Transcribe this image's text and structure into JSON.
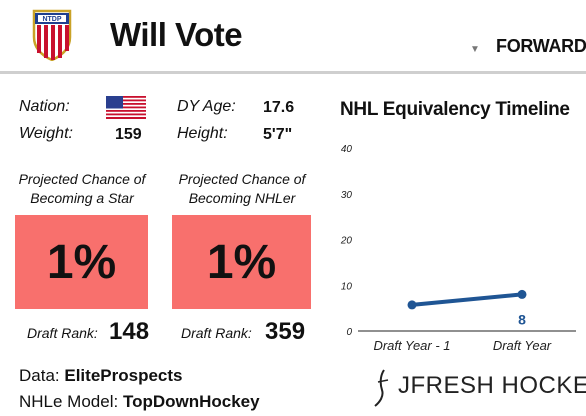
{
  "header": {
    "player_name": "Will Vote",
    "position": "FORWARD",
    "logo_text": "NTDP"
  },
  "bio": {
    "nation_label": "Nation:",
    "weight_label": "Weight:",
    "weight_value": "159",
    "dy_age_label": "DY Age:",
    "dy_age_value": "17.6",
    "height_label": "Height:",
    "height_value": "5'7\""
  },
  "projections": [
    {
      "label_line1": "Projected Chance of",
      "label_line2": "Becoming a Star",
      "value": "1%",
      "rank_label": "Draft Rank:",
      "rank_value": "148"
    },
    {
      "label_line1": "Projected Chance of",
      "label_line2": "Becoming NHLer",
      "value": "1%",
      "rank_label": "Draft Rank:",
      "rank_value": "359"
    }
  ],
  "sources": {
    "data_label": "Data:",
    "data_value": "EliteProspects",
    "model_label": "NHLe Model:",
    "model_value": "TopDownHockey"
  },
  "colors": {
    "projection_box": "#f8706d",
    "line": "#1f5594",
    "point_label": "#1f5594"
  },
  "chart_data": {
    "type": "line",
    "title": "NHL Equivalency Timeline",
    "categories": [
      "Draft Year - 1",
      "Draft Year"
    ],
    "series": [
      {
        "values": [
          5.7,
          8
        ]
      }
    ],
    "point_labels": [
      "",
      "8"
    ],
    "yticks": [
      "0",
      "10",
      "20",
      "30",
      "40"
    ],
    "ylim": [
      0,
      40
    ],
    "grid": false
  },
  "brand": {
    "text": "JFRESH HOCKEY"
  }
}
